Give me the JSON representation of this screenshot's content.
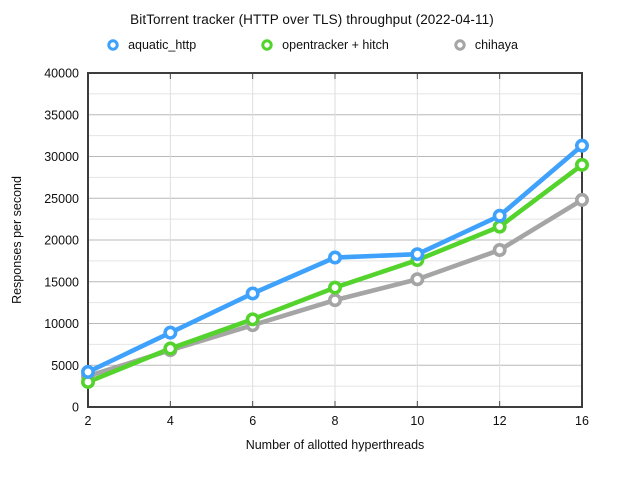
{
  "page": {
    "background": "#ffffff"
  },
  "chart_data": {
    "type": "line",
    "title": "BitTorrent tracker (HTTP over TLS) throughput (2022-04-11)",
    "xlabel": "Number of allotted hyperthreads",
    "ylabel": "Responses per second",
    "categories": [
      "2",
      "4",
      "6",
      "8",
      "10",
      "12",
      "16"
    ],
    "series": [
      {
        "name": "aquatic_http",
        "color": "#3EA1FC",
        "values": [
          4200,
          8900,
          13600,
          17900,
          18300,
          22900,
          31300
        ]
      },
      {
        "name": "opentracker + hitch",
        "color": "#53D32C",
        "values": [
          3000,
          7000,
          10500,
          14300,
          17600,
          21600,
          29000
        ]
      },
      {
        "name": "chihaya",
        "color": "#A5A5A5",
        "values": [
          3700,
          6800,
          9800,
          12800,
          15300,
          18800,
          24800
        ]
      }
    ],
    "ylim": [
      0,
      40000
    ],
    "ytick_step": 5000,
    "yminor_step": 2500,
    "grid": true,
    "legend_position": "top",
    "marker_style": "open-circle",
    "colors": {
      "grid_major": "#b8b8b8",
      "grid_minor": "#e4e4e4",
      "grid_vertical": "#dedede",
      "plot_border": "#3d3d3d",
      "tick_mark": "#4a4a4a",
      "text": "#0f0f0f"
    }
  }
}
